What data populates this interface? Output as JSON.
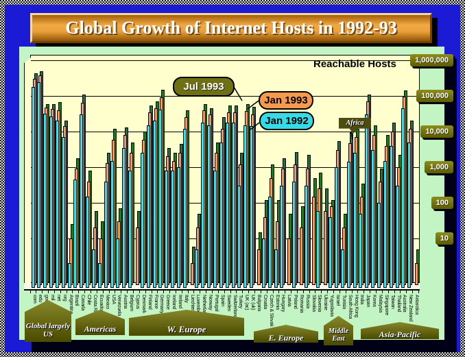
{
  "title": "Global Growth of Internet Hosts in 1992-93",
  "chart_title": "Reachable Hosts",
  "callouts": {
    "jul1993": "Jul 1993",
    "jan1993": "Jan 1993",
    "jan1992": "Jan 1992",
    "africa": "Africa"
  },
  "y_axis": {
    "labels": [
      "1,000,000",
      "100,000",
      "10,000",
      "1,000",
      "100",
      "10"
    ]
  },
  "colors": {
    "background": "#1b1bd6",
    "panel": "#c2f5c3",
    "plot": "#ffffce",
    "badge_olive": "#6d6d10",
    "title_orange": "#eca23c",
    "bar_jan1992": "#35e2ee",
    "bar_jan1993": "#f49a50",
    "bar_jul1993": "#1e7a1e"
  },
  "chart_data": {
    "type": "bar",
    "scale": "log",
    "ylim": [
      1,
      1000000
    ],
    "ylabel": "Reachable Hosts",
    "grid": true,
    "legend_position": "floating-callouts",
    "categories": [
      "com",
      "edu",
      "gov",
      "mil",
      "net",
      "org",
      "Argentina",
      "Brazil",
      "Canada",
      "Chile",
      "Costa Rica",
      "Ecuador",
      "Mexico",
      "USA",
      "Venezuela",
      "Austria",
      "Belgium",
      "Cyprus",
      "Denmark",
      "Finland",
      "France",
      "Germany",
      "Greece",
      "Iceland",
      "Ireland",
      "Italy",
      "Liechtenstein",
      "Luxembourg",
      "Netherlands",
      "Norway",
      "Portugal",
      "Spain",
      "Sweden",
      "Switzerland",
      "Turkey",
      "UK (ac)",
      "UK (uk)",
      "Bulgaria",
      "Croatia",
      "Czech & Slovak",
      "Estonia",
      "Hungary",
      "Latvia",
      "Poland",
      "Romania",
      "Russia",
      "Slovakia",
      "Slovenia",
      "Ukraine",
      "Yugoslavia",
      "Israel",
      "Tunisia",
      "South Africa",
      "Hong Kong",
      "India",
      "Japan",
      "Korea",
      "Malaysia",
      "Singapore",
      "Taiwan",
      "Thailand",
      "Australia",
      "New Zealand",
      "Antarctica"
    ],
    "series": [
      {
        "name": "Jul 1993",
        "color": "#1e7a1e",
        "values": [
          430000,
          500000,
          59000,
          60000,
          66000,
          20000,
          25,
          1800,
          110000,
          800,
          60,
          30,
          2500,
          12000,
          70,
          13000,
          5000,
          60,
          10000,
          55000,
          70000,
          150000,
          3500,
          2500,
          4500,
          40000,
          6,
          50,
          60000,
          45000,
          5000,
          25000,
          55000,
          55000,
          2500,
          60000,
          50000,
          15,
          120,
          1200,
          120,
          1800,
          50,
          2600,
          80,
          2200,
          500,
          700,
          250,
          120,
          5500,
          50,
          10000,
          12000,
          350,
          110000,
          15000,
          900,
          8000,
          18000,
          2200,
          140000,
          20000,
          5
        ]
      },
      {
        "name": "Jan 1993",
        "color": "#f49a50",
        "values": [
          305000,
          385000,
          47000,
          43000,
          40000,
          14000,
          10,
          900,
          65000,
          400,
          20,
          10,
          1300,
          6000,
          30,
          8000,
          2500,
          20,
          6000,
          35000,
          45000,
          90000,
          2000,
          1500,
          2500,
          25000,
          2,
          20,
          40000,
          30000,
          2500,
          12000,
          35000,
          35000,
          1200,
          38000,
          30000,
          5,
          40,
          500,
          30,
          900,
          10,
          1200,
          20,
          900,
          150,
          250,
          60,
          80,
          3000,
          20,
          4800,
          7000,
          150,
          70000,
          8000,
          400,
          4000,
          10000,
          1000,
          95000,
          12000,
          2
        ]
      },
      {
        "name": "Jan 1992",
        "color": "#35e2ee",
        "values": [
          181000,
          243000,
          31000,
          27000,
          20000,
          7000,
          2,
          450,
          30000,
          150,
          5,
          2,
          400,
          1500,
          10,
          3500,
          800,
          0,
          2500,
          15000,
          20000,
          42000,
          800,
          800,
          1000,
          12000,
          0,
          5,
          18000,
          15000,
          800,
          5000,
          18000,
          18000,
          300,
          15000,
          14000,
          0,
          10,
          150,
          5,
          300,
          0,
          400,
          0,
          300,
          0,
          60,
          0,
          40,
          1000,
          5,
          1400,
          2500,
          50,
          30000,
          3000,
          100,
          1500,
          4000,
          300,
          45000,
          5000,
          0
        ]
      }
    ],
    "groups": [
      {
        "label": "Global largely US",
        "span": [
          0,
          5
        ]
      },
      {
        "label": "Americas",
        "span": [
          6,
          14
        ]
      },
      {
        "label": "W. Europe",
        "span": [
          15,
          36
        ]
      },
      {
        "label": "E. Europe",
        "span": [
          37,
          49
        ]
      },
      {
        "label": "Middle East",
        "span": [
          50,
          52
        ]
      },
      {
        "label": "Asia-Pacific",
        "span": [
          53,
          63
        ]
      }
    ]
  }
}
